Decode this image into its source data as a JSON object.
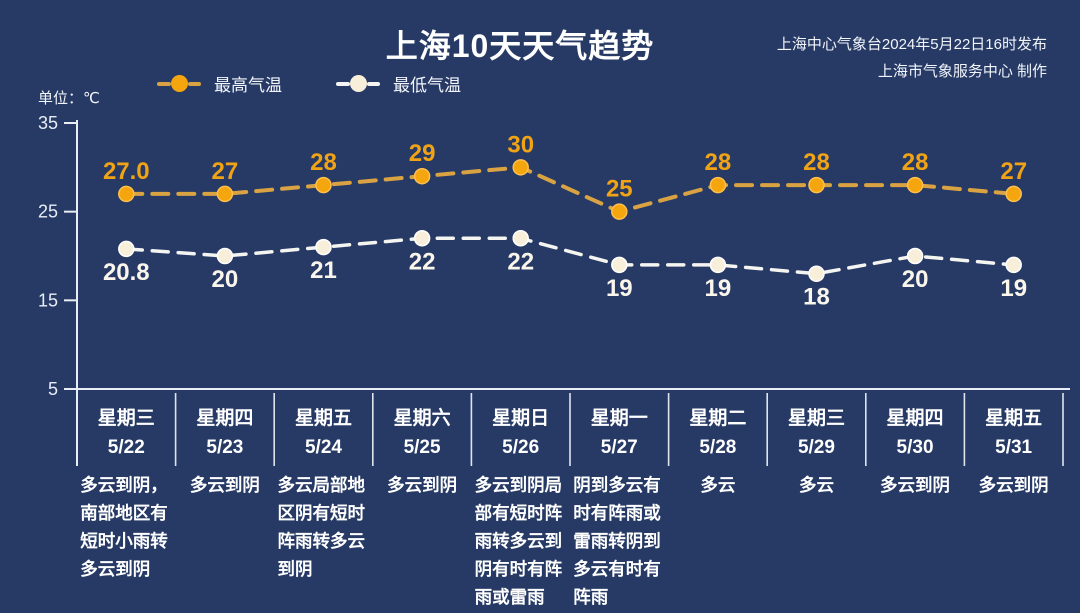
{
  "header": {
    "title": "上海10天天气趋势",
    "source_line1": "上海中心气象台2024年5月22日16时发布",
    "source_line2": "上海市气象服务中心 制作",
    "unit_label": "单位：℃"
  },
  "legend": {
    "high": {
      "label": "最高气温",
      "color": "#f5a50d"
    },
    "low": {
      "label": "最低气温",
      "color": "#f8efdb"
    }
  },
  "colors": {
    "background": "#263a65",
    "axis": "#e8edf6",
    "high_line": "#d9a243",
    "high_marker": "#f5a50d",
    "high_label": "#f0a315",
    "low_line": "#f4f4f1",
    "low_marker": "#f8efdb",
    "low_label": "#fbf6ec"
  },
  "chart_data": {
    "type": "line",
    "title": "上海10天天气趋势",
    "unit": "℃",
    "ylim": [
      5,
      35
    ],
    "y_ticks": [
      35,
      25,
      15,
      5
    ],
    "grid": false,
    "legend_position": "top-left",
    "categories": [
      "5/22",
      "5/23",
      "5/24",
      "5/25",
      "5/26",
      "5/27",
      "5/28",
      "5/29",
      "5/30",
      "5/31"
    ],
    "series": [
      {
        "name": "最高气温",
        "values": [
          27,
          27,
          28,
          29,
          30,
          25,
          28,
          28,
          28,
          27
        ],
        "labels": [
          "27.0",
          "27",
          "28",
          "29",
          "30",
          "25",
          "28",
          "28",
          "28",
          "27"
        ]
      },
      {
        "name": "最低气温",
        "values": [
          20.8,
          20,
          21,
          22,
          22,
          19,
          19,
          18,
          20,
          19
        ],
        "labels": [
          "20.8",
          "20",
          "21",
          "22",
          "22",
          "19",
          "19",
          "18",
          "20",
          "19"
        ]
      }
    ],
    "days": [
      {
        "weekday": "星期三",
        "date": "5/22",
        "desc": "多云到阴，南部地区有短时小雨转多云到阴"
      },
      {
        "weekday": "星期四",
        "date": "5/23",
        "desc": "多云到阴"
      },
      {
        "weekday": "星期五",
        "date": "5/24",
        "desc": "多云局部地区阴有短时阵雨转多云到阴"
      },
      {
        "weekday": "星期六",
        "date": "5/25",
        "desc": "多云到阴"
      },
      {
        "weekday": "星期日",
        "date": "5/26",
        "desc": "多云到阴局部有短时阵雨转多云到阴有时有阵雨或雷雨"
      },
      {
        "weekday": "星期一",
        "date": "5/27",
        "desc": "阴到多云有时有阵雨或雷雨转阴到多云有时有阵雨"
      },
      {
        "weekday": "星期二",
        "date": "5/28",
        "desc": "多云"
      },
      {
        "weekday": "星期三",
        "date": "5/29",
        "desc": "多云"
      },
      {
        "weekday": "星期四",
        "date": "5/30",
        "desc": "多云到阴"
      },
      {
        "weekday": "星期五",
        "date": "5/31",
        "desc": "多云到阴"
      }
    ]
  }
}
